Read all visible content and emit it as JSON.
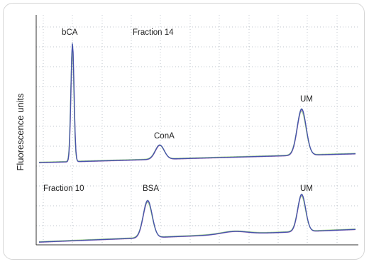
{
  "chart_data": {
    "type": "line",
    "title": "",
    "xlabel": "",
    "ylabel": "Fluorescence units",
    "grid": true,
    "panels": [
      {
        "label": "Fraction 14",
        "peaks": [
          {
            "name": "bCA",
            "height": 1.0
          },
          {
            "name": "ConA",
            "height": 0.12
          },
          {
            "name": "UM",
            "height": 0.39
          }
        ]
      },
      {
        "label": "Fraction 10",
        "peaks": [
          {
            "name": "BSA",
            "height": 0.85
          },
          {
            "name": "UM",
            "height": 0.85
          }
        ]
      }
    ],
    "trace_colors": [
      "#7b8fb8",
      "#d88fc8",
      "#9fcf8a",
      "#3a4aa8"
    ]
  }
}
